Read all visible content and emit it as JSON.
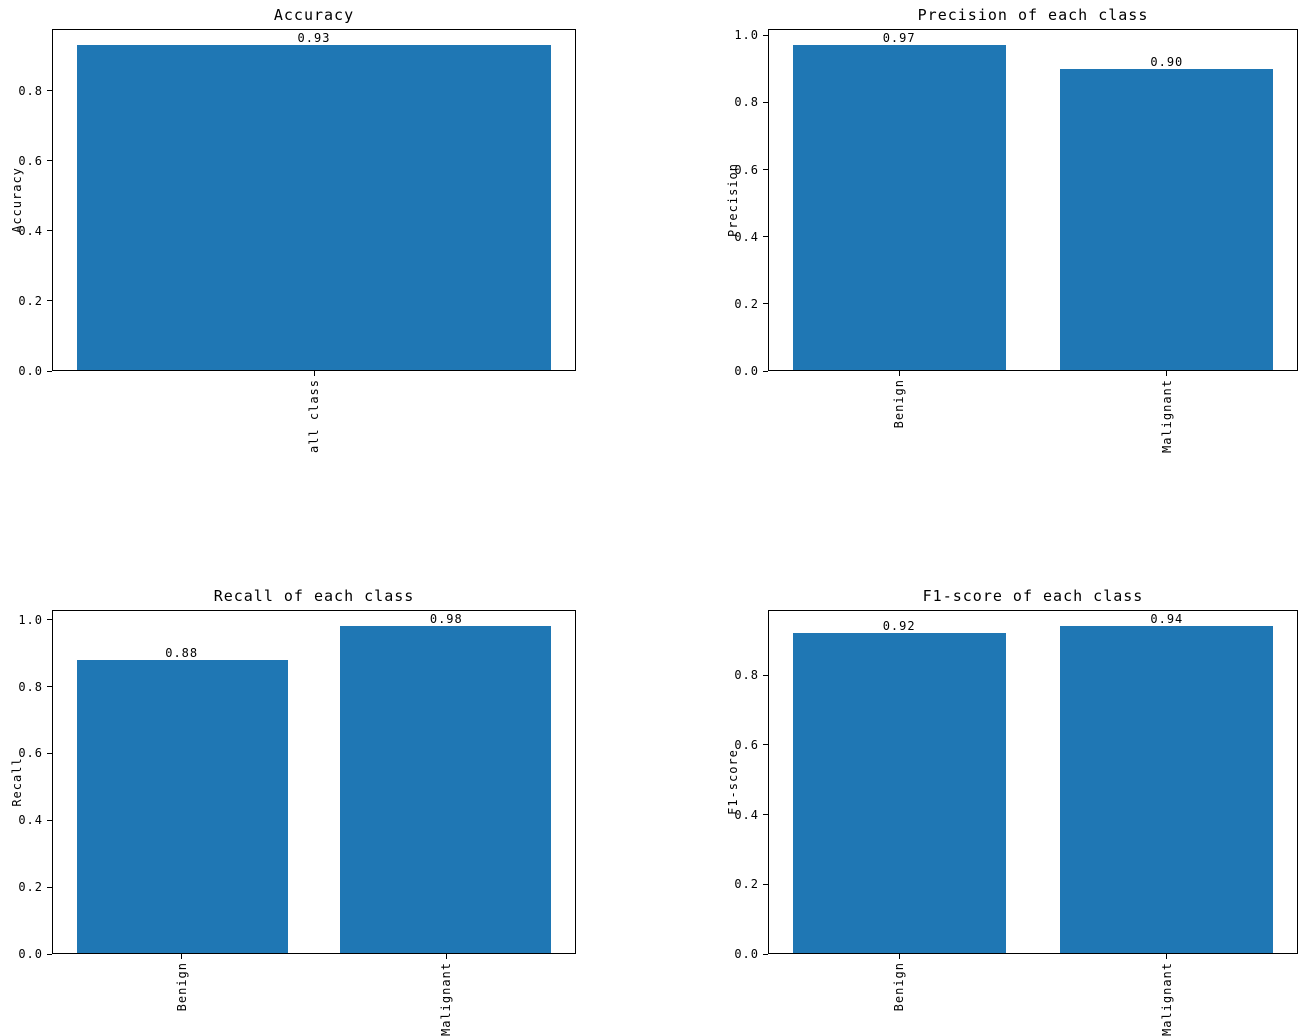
{
  "figure": {
    "background": "#ffffff",
    "bar_color": "#1f77b4",
    "text_color": "#000000",
    "spine_color": "#000000"
  },
  "chart_data": [
    {
      "type": "bar",
      "title": "Accuracy",
      "xlabel": "",
      "ylabel": "Accuracy",
      "categories": [
        "all class"
      ],
      "values": [
        0.93
      ],
      "value_labels": [
        "0.93"
      ],
      "yticks": {
        "values": [
          0.0,
          0.2,
          0.4,
          0.6,
          0.8
        ],
        "labels": [
          "0.0",
          "0.2",
          "0.4",
          "0.6",
          "0.8"
        ]
      },
      "ylim": [
        0,
        0.9765
      ],
      "grid": false,
      "legend": false,
      "xtick_rotation": 90
    },
    {
      "type": "bar",
      "title": "Precision of each class",
      "xlabel": "",
      "ylabel": "Precision",
      "categories": [
        "Benign",
        "Malignant"
      ],
      "values": [
        0.97,
        0.9
      ],
      "value_labels": [
        "0.97",
        "0.90"
      ],
      "yticks": {
        "values": [
          0.0,
          0.2,
          0.4,
          0.6,
          0.8,
          1.0
        ],
        "labels": [
          "0.0",
          "0.2",
          "0.4",
          "0.6",
          "0.8",
          "1.0"
        ]
      },
      "ylim": [
        0,
        1.0185
      ],
      "grid": false,
      "legend": false,
      "xtick_rotation": 90
    },
    {
      "type": "bar",
      "title": "Recall of each class",
      "xlabel": "",
      "ylabel": "Recall",
      "categories": [
        "Benign",
        "Malignant"
      ],
      "values": [
        0.88,
        0.98
      ],
      "value_labels": [
        "0.88",
        "0.98"
      ],
      "yticks": {
        "values": [
          0.0,
          0.2,
          0.4,
          0.6,
          0.8,
          1.0
        ],
        "labels": [
          "0.0",
          "0.2",
          "0.4",
          "0.6",
          "0.8",
          "1.0"
        ]
      },
      "ylim": [
        0,
        1.029
      ],
      "grid": false,
      "legend": false,
      "xtick_rotation": 90
    },
    {
      "type": "bar",
      "title": "F1-score of each class",
      "xlabel": "",
      "ylabel": "F1-score",
      "categories": [
        "Benign",
        "Malignant"
      ],
      "values": [
        0.92,
        0.94
      ],
      "value_labels": [
        "0.92",
        "0.94"
      ],
      "yticks": {
        "values": [
          0.0,
          0.2,
          0.4,
          0.6,
          0.8
        ],
        "labels": [
          "0.0",
          "0.2",
          "0.4",
          "0.6",
          "0.8"
        ]
      },
      "ylim": [
        0,
        0.987
      ],
      "grid": false,
      "legend": false,
      "xtick_rotation": 90
    }
  ]
}
